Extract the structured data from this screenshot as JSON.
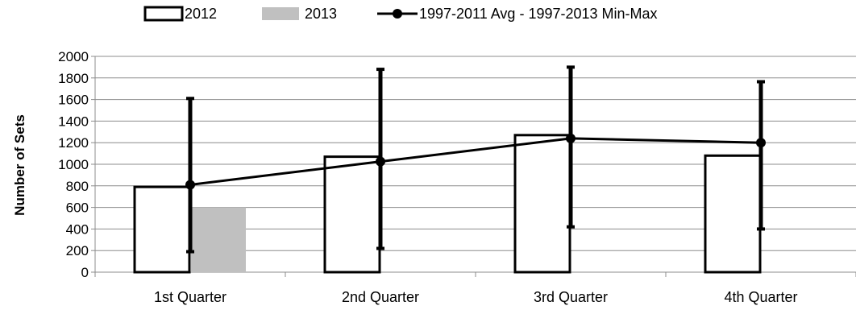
{
  "chart_data": {
    "type": "bar",
    "title": "",
    "xlabel": "",
    "ylabel": "Number of Sets",
    "ylim": [
      0,
      2000
    ],
    "yticks": [
      0,
      200,
      400,
      600,
      800,
      1000,
      1200,
      1400,
      1600,
      1800,
      2000
    ],
    "grid": true,
    "legend_position": "top",
    "categories": [
      "1st Quarter",
      "2nd Quarter",
      "3rd Quarter",
      "4th Quarter"
    ],
    "series": [
      {
        "name": "2012",
        "kind": "bar",
        "style": "outline",
        "color": "#000000",
        "values": [
          790,
          1070,
          1270,
          1080
        ]
      },
      {
        "name": "2013",
        "kind": "bar",
        "style": "filled",
        "color": "#c0c0c0",
        "values": [
          600,
          null,
          null,
          null
        ]
      },
      {
        "name": "1997-2011 Avg - 1997-2013 Min-Max",
        "kind": "line",
        "color": "#000000",
        "values": [
          810,
          1025,
          1240,
          1200
        ],
        "min": [
          190,
          220,
          420,
          400
        ],
        "max": [
          1610,
          1880,
          1900,
          1765
        ]
      }
    ]
  }
}
